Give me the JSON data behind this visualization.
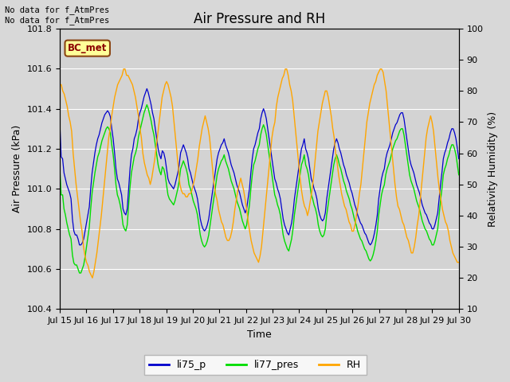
{
  "title": "Air Pressure and RH",
  "ylabel_left": "Air Pressure (kPa)",
  "ylabel_right": "Relativity Humidity (%)",
  "xlabel": "Time",
  "ylim_left": [
    100.4,
    101.8
  ],
  "ylim_right": [
    10,
    100
  ],
  "yticks_left": [
    100.4,
    100.6,
    100.8,
    101.0,
    101.2,
    101.4,
    101.6,
    101.8
  ],
  "yticks_right": [
    10,
    20,
    30,
    40,
    50,
    60,
    70,
    80,
    90,
    100
  ],
  "xtick_labels": [
    "Jul 15",
    "Jul 16",
    "Jul 17",
    "Jul 18",
    "Jul 19",
    "Jul 20",
    "Jul 21",
    "Jul 22",
    "Jul 23",
    "Jul 24",
    "Jul 25",
    "Jul 26",
    "Jul 27",
    "Jul 28",
    "Jul 29",
    "Jul 30"
  ],
  "fig_bg_color": "#d8d8d8",
  "plot_bg_color": "#d3d3d3",
  "annotation_text": "No data for f_AtmPres\nNo data for f_AtmPres",
  "bc_met_label": "BC_met",
  "legend_labels": [
    "li75_p",
    "li77_pres",
    "RH"
  ],
  "line_colors": [
    "#0000cc",
    "#00dd00",
    "#ffa500"
  ],
  "title_fontsize": 12,
  "label_fontsize": 9,
  "tick_fontsize": 8,
  "li75_p": [
    101.33,
    101.16,
    101.15,
    101.08,
    101.05,
    101.02,
    101.0,
    100.98,
    100.95,
    100.85,
    100.79,
    100.77,
    100.77,
    100.75,
    100.72,
    100.72,
    100.73,
    100.75,
    100.79,
    100.83,
    100.87,
    100.91,
    101.0,
    101.08,
    101.13,
    101.18,
    101.22,
    101.25,
    101.27,
    101.3,
    101.33,
    101.35,
    101.37,
    101.38,
    101.39,
    101.38,
    101.36,
    101.3,
    101.25,
    101.18,
    101.1,
    101.05,
    101.03,
    101.0,
    100.97,
    100.9,
    100.88,
    100.87,
    100.9,
    101.0,
    101.1,
    101.17,
    101.2,
    101.25,
    101.27,
    101.3,
    101.35,
    101.38,
    101.4,
    101.43,
    101.46,
    101.48,
    101.5,
    101.48,
    101.45,
    101.42,
    101.38,
    101.35,
    101.3,
    101.25,
    101.2,
    101.17,
    101.15,
    101.19,
    101.18,
    101.15,
    101.1,
    101.05,
    101.03,
    101.02,
    101.01,
    101.0,
    101.02,
    101.05,
    101.08,
    101.12,
    101.18,
    101.2,
    101.22,
    101.2,
    101.18,
    101.15,
    101.1,
    101.08,
    101.05,
    101.02,
    101.0,
    100.98,
    100.95,
    100.9,
    100.85,
    100.82,
    100.8,
    100.79,
    100.8,
    100.82,
    100.85,
    100.9,
    100.95,
    101.0,
    101.05,
    101.1,
    101.15,
    101.18,
    101.2,
    101.22,
    101.23,
    101.25,
    101.22,
    101.2,
    101.18,
    101.15,
    101.12,
    101.1,
    101.08,
    101.05,
    101.02,
    101.0,
    100.98,
    100.95,
    100.92,
    100.9,
    100.88,
    100.9,
    100.95,
    101.0,
    101.08,
    101.15,
    101.2,
    101.22,
    101.25,
    101.28,
    101.3,
    101.35,
    101.38,
    101.4,
    101.38,
    101.35,
    101.3,
    101.25,
    101.2,
    101.15,
    101.1,
    101.05,
    101.03,
    101.0,
    100.98,
    100.95,
    100.9,
    100.85,
    100.82,
    100.8,
    100.78,
    100.77,
    100.8,
    100.83,
    100.88,
    100.95,
    101.0,
    101.05,
    101.1,
    101.15,
    101.2,
    101.22,
    101.25,
    101.2,
    101.18,
    101.15,
    101.1,
    101.05,
    101.03,
    101.0,
    100.98,
    100.95,
    100.9,
    100.87,
    100.85,
    100.84,
    100.85,
    100.88,
    100.95,
    101.0,
    101.05,
    101.1,
    101.15,
    101.2,
    101.23,
    101.25,
    101.23,
    101.2,
    101.18,
    101.15,
    101.12,
    101.1,
    101.07,
    101.05,
    101.03,
    101.0,
    100.98,
    100.95,
    100.92,
    100.9,
    100.87,
    100.85,
    100.83,
    100.82,
    100.8,
    100.78,
    100.77,
    100.75,
    100.73,
    100.72,
    100.73,
    100.75,
    100.78,
    100.82,
    100.87,
    100.95,
    101.0,
    101.05,
    101.08,
    101.1,
    101.15,
    101.18,
    101.2,
    101.22,
    101.25,
    101.28,
    101.3,
    101.32,
    101.33,
    101.35,
    101.37,
    101.38,
    101.38,
    101.35,
    101.3,
    101.25,
    101.2,
    101.15,
    101.12,
    101.1,
    101.08,
    101.05,
    101.02,
    101.0,
    100.98,
    100.95,
    100.92,
    100.9,
    100.88,
    100.87,
    100.85,
    100.83,
    100.82,
    100.8,
    100.8,
    100.82,
    100.85,
    100.88,
    100.95,
    101.02,
    101.08,
    101.15,
    101.18,
    101.2,
    101.23,
    101.25,
    101.28,
    101.3,
    101.3,
    101.28,
    101.25,
    101.2,
    101.15
  ],
  "li77_pres": [
    101.1,
    100.97,
    100.97,
    100.9,
    100.87,
    100.83,
    100.8,
    100.77,
    100.75,
    100.67,
    100.63,
    100.62,
    100.62,
    100.6,
    100.58,
    100.58,
    100.6,
    100.62,
    100.66,
    100.71,
    100.76,
    100.81,
    100.9,
    100.98,
    101.03,
    101.08,
    101.12,
    101.16,
    101.18,
    101.21,
    101.24,
    101.26,
    101.28,
    101.3,
    101.31,
    101.3,
    101.28,
    101.22,
    101.17,
    101.1,
    101.02,
    100.97,
    100.95,
    100.92,
    100.88,
    100.82,
    100.8,
    100.79,
    100.82,
    100.92,
    101.01,
    101.08,
    101.12,
    101.16,
    101.18,
    101.21,
    101.26,
    101.29,
    101.32,
    101.35,
    101.38,
    101.4,
    101.42,
    101.4,
    101.37,
    101.34,
    101.3,
    101.27,
    101.22,
    101.17,
    101.12,
    101.09,
    101.07,
    101.11,
    101.1,
    101.07,
    101.02,
    100.97,
    100.95,
    100.94,
    100.93,
    100.92,
    100.94,
    100.97,
    101.0,
    101.04,
    101.1,
    101.12,
    101.14,
    101.12,
    101.1,
    101.07,
    101.02,
    101.0,
    100.97,
    100.94,
    100.92,
    100.9,
    100.87,
    100.82,
    100.77,
    100.74,
    100.72,
    100.71,
    100.72,
    100.74,
    100.77,
    100.82,
    100.87,
    100.92,
    100.97,
    101.02,
    101.07,
    101.1,
    101.12,
    101.14,
    101.15,
    101.17,
    101.14,
    101.12,
    101.1,
    101.07,
    101.04,
    101.02,
    101.0,
    100.97,
    100.94,
    100.92,
    100.9,
    100.87,
    100.84,
    100.82,
    100.8,
    100.82,
    100.87,
    100.92,
    101.0,
    101.07,
    101.12,
    101.14,
    101.17,
    101.2,
    101.22,
    101.27,
    101.3,
    101.32,
    101.3,
    101.27,
    101.22,
    101.17,
    101.12,
    101.07,
    101.02,
    100.97,
    100.95,
    100.92,
    100.9,
    100.87,
    100.82,
    100.77,
    100.74,
    100.72,
    100.7,
    100.69,
    100.72,
    100.75,
    100.8,
    100.87,
    100.92,
    100.97,
    101.02,
    101.07,
    101.12,
    101.14,
    101.17,
    101.12,
    101.1,
    101.07,
    101.02,
    100.97,
    100.95,
    100.92,
    100.9,
    100.87,
    100.82,
    100.79,
    100.77,
    100.76,
    100.77,
    100.8,
    100.87,
    100.92,
    100.97,
    101.02,
    101.07,
    101.12,
    101.15,
    101.17,
    101.15,
    101.12,
    101.1,
    101.07,
    101.04,
    101.02,
    100.99,
    100.97,
    100.95,
    100.92,
    100.9,
    100.87,
    100.84,
    100.82,
    100.79,
    100.77,
    100.75,
    100.74,
    100.72,
    100.7,
    100.69,
    100.67,
    100.65,
    100.64,
    100.65,
    100.67,
    100.7,
    100.74,
    100.79,
    100.87,
    100.92,
    100.97,
    101.0,
    101.02,
    101.07,
    101.1,
    101.12,
    101.14,
    101.17,
    101.2,
    101.22,
    101.24,
    101.25,
    101.27,
    101.29,
    101.3,
    101.3,
    101.27,
    101.22,
    101.17,
    101.12,
    101.07,
    101.04,
    101.02,
    101.0,
    100.97,
    100.94,
    100.92,
    100.9,
    100.87,
    100.84,
    100.82,
    100.8,
    100.79,
    100.77,
    100.75,
    100.74,
    100.72,
    100.72,
    100.74,
    100.77,
    100.8,
    100.87,
    100.94,
    101.0,
    101.07,
    101.1,
    101.12,
    101.15,
    101.17,
    101.2,
    101.22,
    101.22,
    101.2,
    101.17,
    101.12,
    101.07
  ],
  "rh": [
    82,
    82,
    80,
    79,
    77,
    75,
    72,
    70,
    67,
    60,
    55,
    50,
    46,
    42,
    38,
    35,
    30,
    27,
    25,
    24,
    22,
    21,
    20,
    22,
    25,
    28,
    32,
    36,
    40,
    45,
    50,
    55,
    60,
    65,
    68,
    72,
    75,
    78,
    80,
    82,
    83,
    84,
    85,
    87,
    87,
    85,
    85,
    84,
    83,
    82,
    80,
    78,
    75,
    72,
    68,
    65,
    60,
    57,
    55,
    53,
    52,
    50,
    52,
    55,
    58,
    62,
    66,
    70,
    74,
    78,
    80,
    82,
    83,
    82,
    80,
    78,
    75,
    70,
    65,
    60,
    55,
    50,
    48,
    47,
    47,
    46,
    46,
    47,
    47,
    48,
    50,
    52,
    55,
    58,
    62,
    65,
    68,
    70,
    72,
    70,
    68,
    65,
    60,
    55,
    50,
    47,
    45,
    42,
    40,
    38,
    37,
    35,
    33,
    32,
    32,
    33,
    35,
    38,
    42,
    45,
    48,
    50,
    52,
    50,
    48,
    45,
    42,
    38,
    35,
    32,
    30,
    28,
    27,
    26,
    25,
    27,
    30,
    35,
    40,
    45,
    50,
    55,
    60,
    65,
    68,
    70,
    75,
    78,
    80,
    82,
    84,
    85,
    87,
    87,
    85,
    82,
    80,
    77,
    72,
    67,
    62,
    57,
    52,
    48,
    45,
    43,
    42,
    40,
    42,
    45,
    48,
    52,
    57,
    62,
    67,
    70,
    73,
    76,
    78,
    80,
    80,
    78,
    75,
    72,
    68,
    65,
    60,
    57,
    53,
    50,
    47,
    45,
    43,
    42,
    40,
    38,
    37,
    35,
    35,
    37,
    40,
    43,
    47,
    50,
    55,
    60,
    65,
    70,
    73,
    76,
    78,
    80,
    82,
    83,
    85,
    86,
    87,
    87,
    86,
    83,
    80,
    75,
    70,
    65,
    60,
    55,
    50,
    46,
    43,
    42,
    40,
    38,
    37,
    35,
    33,
    32,
    30,
    28,
    28,
    30,
    33,
    37,
    40,
    45,
    50,
    55,
    60,
    65,
    68,
    70,
    72,
    70,
    67,
    62,
    57,
    52,
    48,
    45,
    42,
    40,
    38,
    37,
    35,
    32,
    30,
    28,
    27,
    26,
    25,
    25
  ]
}
